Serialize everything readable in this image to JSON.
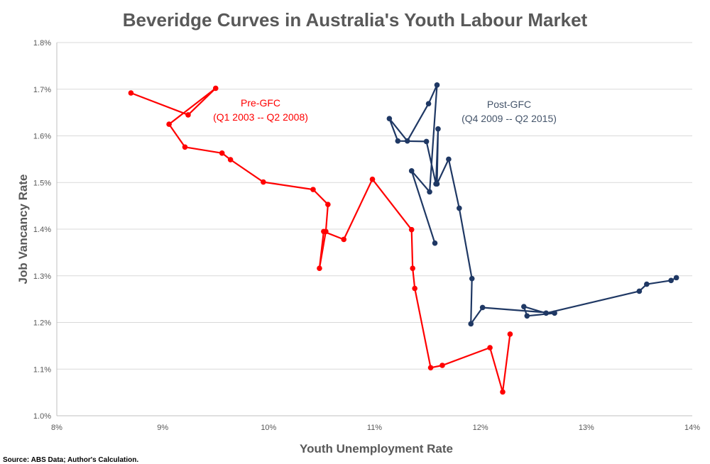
{
  "chart_data": {
    "type": "line",
    "title": "Beveridge Curves in Australia's Youth Labour Market",
    "xlabel": "Youth Unemployment Rate",
    "ylabel": "Job Vancancy Rate",
    "source": "Source: ABS Data; Author's Calculation.",
    "xlim": [
      8,
      14
    ],
    "ylim": [
      1.0,
      1.8
    ],
    "x_ticks": [
      "8%",
      "9%",
      "10%",
      "11%",
      "12%",
      "13%",
      "14%"
    ],
    "y_ticks": [
      "1.0%",
      "1.1%",
      "1.2%",
      "1.3%",
      "1.4%",
      "1.5%",
      "1.6%",
      "1.7%",
      "1.8%"
    ],
    "grid": true,
    "annotations": [
      {
        "lines": [
          "Pre-GFC",
          "(Q1 2003 -- Q2 2008)"
        ],
        "color": "#ff0000"
      },
      {
        "lines": [
          "Post-GFC",
          "(Q4 2009 -- Q2 2015)"
        ],
        "color": "#44546a"
      }
    ],
    "series": [
      {
        "color": "#ff0000",
        "points": [
          [
            8.7,
            1.692
          ],
          [
            9.24,
            1.645
          ],
          [
            9.5,
            1.702
          ],
          [
            9.06,
            1.625
          ],
          [
            9.21,
            1.576
          ],
          [
            9.56,
            1.563
          ],
          [
            9.64,
            1.549
          ],
          [
            9.95,
            1.501
          ],
          [
            10.42,
            1.485
          ],
          [
            10.56,
            1.453
          ],
          [
            10.54,
            1.395
          ],
          [
            10.48,
            1.316
          ],
          [
            10.52,
            1.395
          ],
          [
            10.71,
            1.378
          ],
          [
            10.98,
            1.507
          ],
          [
            11.35,
            1.399
          ],
          [
            11.36,
            1.316
          ],
          [
            11.38,
            1.273
          ],
          [
            11.53,
            1.103
          ],
          [
            11.64,
            1.108
          ],
          [
            12.09,
            1.146
          ],
          [
            12.21,
            1.051
          ],
          [
            12.28,
            1.175
          ]
        ]
      },
      {
        "color": "#1f3864",
        "points": [
          [
            11.57,
            1.37
          ],
          [
            11.35,
            1.525
          ],
          [
            11.52,
            1.48
          ],
          [
            11.59,
            1.709
          ],
          [
            11.51,
            1.669
          ],
          [
            11.31,
            1.589
          ],
          [
            11.14,
            1.637
          ],
          [
            11.22,
            1.589
          ],
          [
            11.49,
            1.588
          ],
          [
            11.58,
            1.497
          ],
          [
            11.6,
            1.615
          ],
          [
            11.59,
            1.497
          ],
          [
            11.7,
            1.55
          ],
          [
            11.8,
            1.445
          ],
          [
            11.92,
            1.294
          ],
          [
            11.91,
            1.197
          ],
          [
            12.02,
            1.232
          ],
          [
            12.7,
            1.22
          ],
          [
            12.44,
            1.214
          ],
          [
            12.41,
            1.234
          ],
          [
            12.62,
            1.22
          ],
          [
            13.5,
            1.267
          ],
          [
            13.57,
            1.282
          ],
          [
            13.8,
            1.29
          ],
          [
            13.85,
            1.296
          ]
        ]
      }
    ]
  }
}
